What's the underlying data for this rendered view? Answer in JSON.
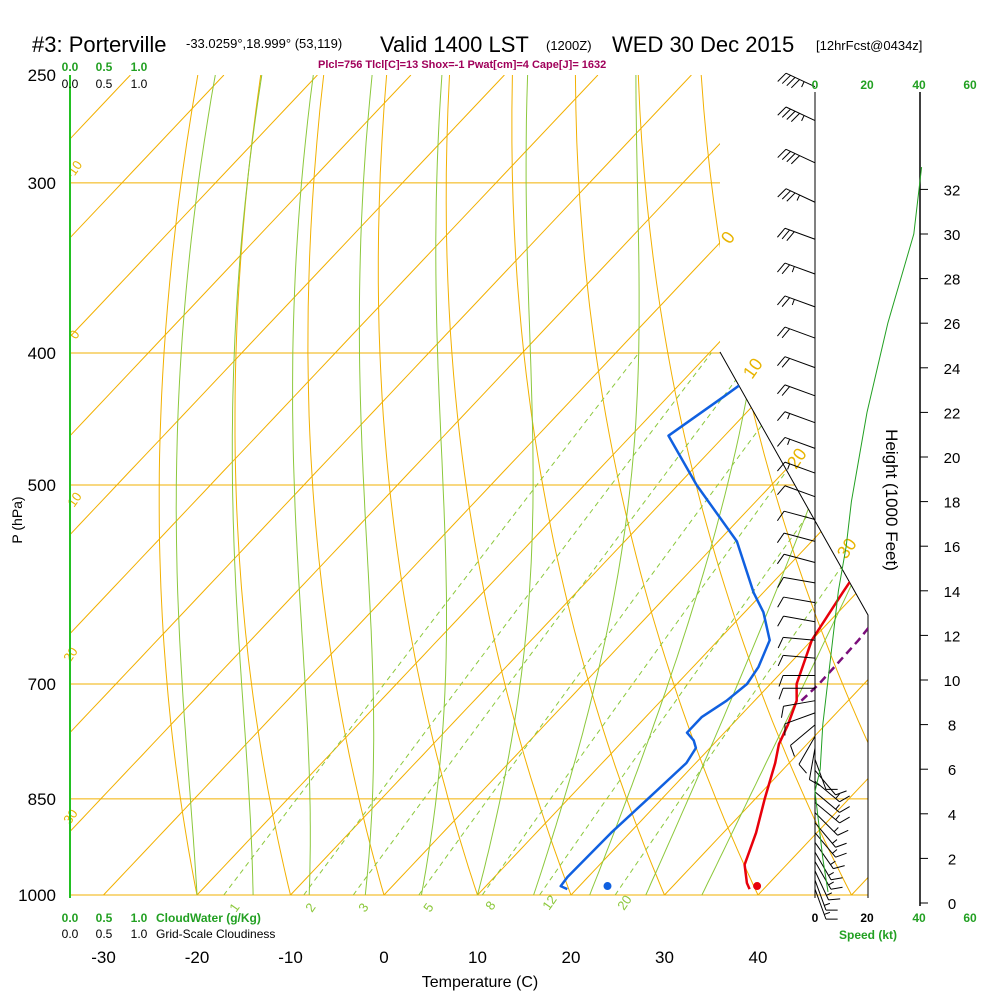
{
  "header": {
    "station": "#3: Porterville",
    "coords": "-33.0259°,18.999° (53,119)",
    "valid": "Valid 1400 LST",
    "zulu": "(1200Z)",
    "date": "WED 30 Dec 2015",
    "forecast": "[12hrFcst@0434z]",
    "indices": "Plcl=756 Tlcl[C]=13 Shox=-1 Pwat[cm]=4 Cape[J]= 1632"
  },
  "colors": {
    "temperature": "#e8000b",
    "dewpoint": "#1060e0",
    "parcel": "#7a0d7a",
    "dry_adiabat": "#f2b000",
    "isotherm": "#f2b000",
    "moist_adiabat": "#8cc83c",
    "mixing_ratio": "#8cc83c",
    "cloud_scale": "#22a022",
    "speed_profile": "#22a022",
    "index_text": "#a0005a",
    "isotherm_label": "#e8b400"
  },
  "chart_data": {
    "type": "line",
    "title": "Skew-T log-P sounding",
    "xlabel": "Temperature (C)",
    "ylabel": "P (hPa)",
    "xlim": [
      -30,
      40
    ],
    "pressure_range": [
      250,
      1000
    ],
    "x_ticks": [
      "-30",
      "-20",
      "-10",
      "0",
      "10",
      "20",
      "30",
      "40"
    ],
    "x_tick_values": [
      -30,
      -20,
      -10,
      0,
      10,
      20,
      30,
      40
    ],
    "pressure_ticks": [
      "250",
      "300",
      "400",
      "500",
      "700",
      "850",
      "1000"
    ],
    "pressure_tick_values": [
      250,
      300,
      400,
      500,
      700,
      850,
      1000
    ],
    "series": [
      {
        "name": "Temperature",
        "x": [
          38.5,
          37.6,
          35.5,
          33.5,
          31.0,
          28.5,
          27.0,
          26.0,
          24.5,
          22.8,
          20.0,
          18.5,
          17.0,
          16.0,
          15.0,
          14.0,
          12.0,
          11.0,
          10.8,
          11.0,
          10.5,
          9.0,
          6.0
        ],
        "y": [
          990,
          980,
          950,
          900,
          850,
          800,
          775,
          750,
          720,
          700,
          650,
          600,
          550,
          500,
          470,
          440,
          400,
          380,
          350,
          320,
          300,
          280,
          260
        ]
      },
      {
        "name": "Dewpoint",
        "x": [
          19.0,
          18.0,
          17.8,
          18.0,
          18.5,
          19.0,
          18.5,
          17.5,
          16.0,
          16.0,
          17.0,
          17.5,
          17.0,
          15.5,
          12.0,
          9.0,
          2.0,
          -8.0,
          -16.0,
          -14.0,
          -12.0,
          -13.0,
          -14.0,
          -16.0,
          -17.0,
          -18.0,
          -18.5,
          -17.5,
          -16.5,
          -15.5
        ],
        "y": [
          990,
          985,
          970,
          900,
          850,
          800,
          780,
          770,
          760,
          740,
          720,
          700,
          680,
          650,
          620,
          600,
          550,
          500,
          460,
          430,
          400,
          380,
          360,
          340,
          330,
          320,
          310,
          300,
          280,
          260
        ]
      },
      {
        "name": "Parcel",
        "x": [
          25.0,
          25.2,
          25.0,
          24.3,
          23.4,
          22.5,
          21.3,
          20.0,
          19.0,
          18.5,
          18.0,
          17.3,
          16.5,
          15.2,
          14.0
        ],
        "y": [
          720,
          700,
          650,
          600,
          550,
          500,
          450,
          400,
          370,
          350,
          330,
          310,
          300,
          280,
          260
        ]
      }
    ],
    "markers": [
      {
        "name": "surface-temperature",
        "temp": 39.0,
        "pressure": 985
      },
      {
        "name": "surface-dewpoint",
        "temp": 23.0,
        "pressure": 985
      }
    ],
    "dry_adiabat_labels": [
      "-10",
      "0",
      "10",
      "20",
      "30",
      "0",
      "10",
      "20",
      "30"
    ],
    "mixing_ratio_labels": [
      "1",
      "2",
      "3",
      "5",
      "8",
      "12",
      "20"
    ],
    "height_axis": {
      "label": "Height (1000 Feet)",
      "ticks": [
        "0",
        "2",
        "4",
        "6",
        "8",
        "10",
        "12",
        "14",
        "16",
        "18",
        "20",
        "22",
        "24",
        "26",
        "28",
        "30",
        "32"
      ],
      "values": [
        0,
        2,
        4,
        6,
        8,
        10,
        12,
        14,
        16,
        18,
        20,
        22,
        24,
        26,
        28,
        30,
        32
      ]
    },
    "speed_profile": {
      "label": "Speed (kt)",
      "top_ticks": [
        "0",
        "20",
        "40",
        "60"
      ],
      "bottom_ticks": [
        "0",
        "20",
        "40",
        "60"
      ],
      "values": [
        5,
        3,
        1,
        0,
        2,
        3,
        5,
        7,
        9,
        12,
        14,
        17,
        20,
        24,
        28,
        33,
        38,
        41
      ],
      "heights": [
        0.5,
        2,
        4,
        5,
        6,
        8,
        10,
        12,
        14,
        16,
        18,
        20,
        22,
        24,
        26,
        28,
        30,
        33
      ]
    },
    "wind_barbs": {
      "pressures": [
        990,
        975,
        960,
        945,
        930,
        915,
        900,
        885,
        870,
        855,
        840,
        825,
        810,
        795,
        780,
        765,
        750,
        735,
        720,
        705,
        690,
        670,
        650,
        630,
        610,
        590,
        570,
        550,
        530,
        510,
        490,
        470,
        450,
        430,
        410,
        390,
        370,
        350,
        330,
        310,
        290,
        270,
        255
      ],
      "directions": [
        160,
        160,
        155,
        150,
        150,
        145,
        140,
        140,
        135,
        130,
        130,
        130,
        140,
        160,
        190,
        210,
        230,
        250,
        260,
        270,
        270,
        275,
        275,
        280,
        280,
        280,
        285,
        285,
        285,
        290,
        290,
        290,
        290,
        290,
        290,
        290,
        290,
        290,
        290,
        295,
        295,
        295,
        295
      ],
      "speeds": [
        15,
        15,
        15,
        15,
        15,
        15,
        15,
        15,
        15,
        15,
        15,
        15,
        10,
        10,
        10,
        10,
        10,
        10,
        10,
        10,
        10,
        10,
        10,
        10,
        10,
        10,
        10,
        10,
        10,
        10,
        15,
        15,
        15,
        20,
        20,
        20,
        25,
        25,
        30,
        35,
        40,
        45,
        45
      ]
    },
    "cloud_scales": {
      "top_green": [
        "0.0",
        "0.5",
        "1.0"
      ],
      "top_black": [
        "0.0",
        "0.5",
        "1.0"
      ],
      "bottom_green": [
        "0.0",
        "0.5",
        "1.0"
      ],
      "bottom_black": [
        "0.0",
        "0.5",
        "1.0"
      ],
      "cloud_water_label": "CloudWater (g/Kg)",
      "cloudiness_label": "Grid-Scale Cloudiness"
    }
  }
}
